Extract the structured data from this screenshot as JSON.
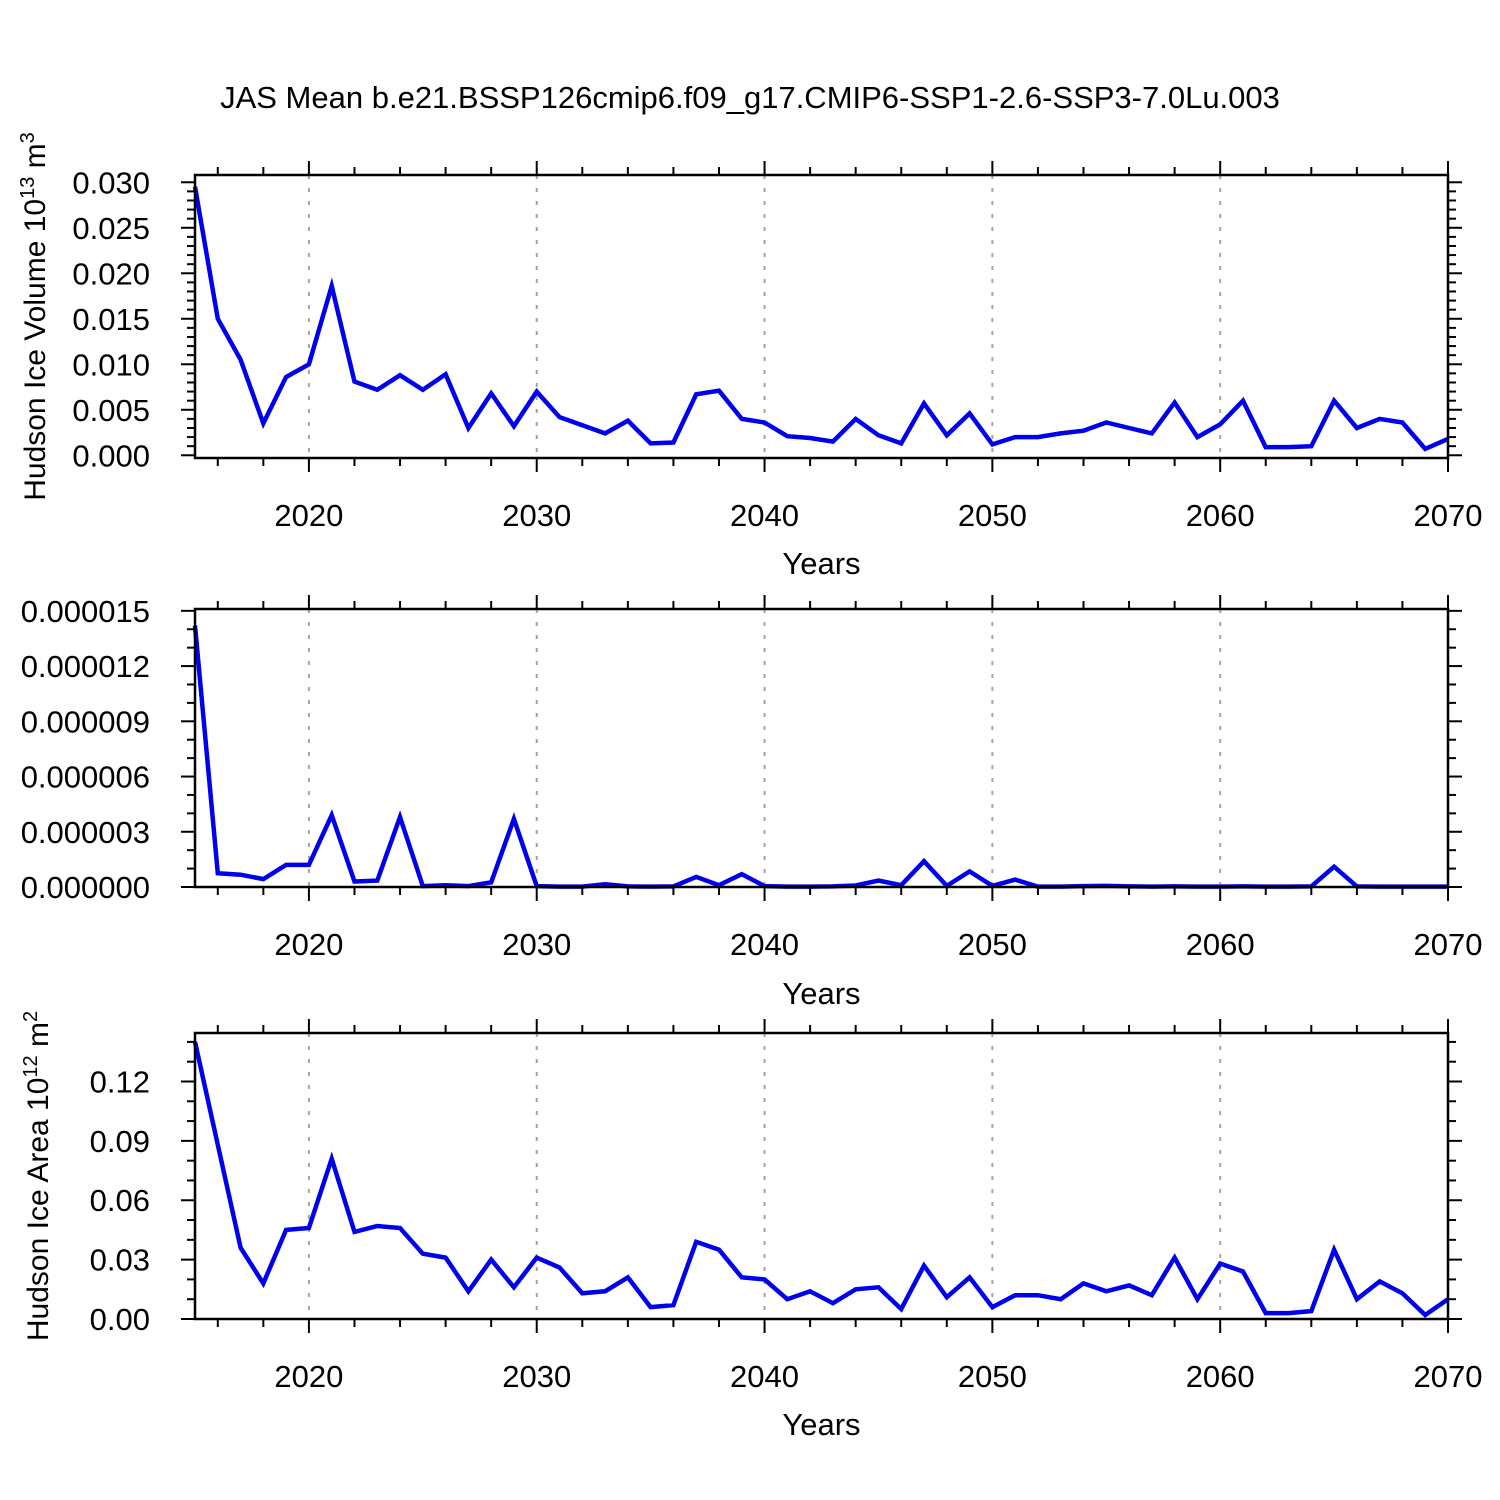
{
  "title": "JAS Mean b.e21.BSSP126cmip6.f09_g17.CMIP6-SSP1-2.6-SSP3-7.0Lu.003",
  "colors": {
    "line": "#0000EE",
    "frame": "#000000",
    "grid": "#A3A3A3",
    "text": "#000000",
    "background": "#FFFFFF"
  },
  "chart_data": [
    {
      "type": "line",
      "panel": "top",
      "xlabel": "Years",
      "ylabel": "Hudson Ice Volume 10^13^ m^3^",
      "xlim": [
        2015,
        2070
      ],
      "ylim": [
        -0.0003,
        0.0308
      ],
      "grid": "vertical-dashed",
      "legend_position": "none",
      "xticks_major": [
        2020,
        2030,
        2040,
        2050,
        2060,
        2070
      ],
      "xtick_labels": [
        "2020",
        "2030",
        "2040",
        "2050",
        "2060",
        "2070"
      ],
      "xticks_minor_step": 2,
      "yticks_major": [
        0.0,
        0.005,
        0.01,
        0.015,
        0.02,
        0.025,
        0.03
      ],
      "ytick_labels": [
        "0.000",
        "0.005",
        "0.010",
        "0.015",
        "0.020",
        "0.025",
        "0.030"
      ],
      "yticks_minor_step": 0.001,
      "gridlines_x": [
        2020,
        2030,
        2040,
        2050,
        2060
      ],
      "x": [
        2015,
        2016,
        2017,
        2018,
        2019,
        2020,
        2021,
        2022,
        2023,
        2024,
        2025,
        2026,
        2027,
        2028,
        2029,
        2030,
        2031,
        2032,
        2033,
        2034,
        2035,
        2036,
        2037,
        2038,
        2039,
        2040,
        2041,
        2042,
        2043,
        2044,
        2045,
        2046,
        2047,
        2048,
        2049,
        2050,
        2051,
        2052,
        2053,
        2054,
        2055,
        2056,
        2057,
        2058,
        2059,
        2060,
        2061,
        2062,
        2063,
        2064,
        2065,
        2066,
        2067,
        2068,
        2069,
        2070
      ],
      "values": [
        0.0295,
        0.015,
        0.0105,
        0.0035,
        0.0086,
        0.01,
        0.0186,
        0.0081,
        0.0072,
        0.0088,
        0.0072,
        0.0089,
        0.003,
        0.0068,
        0.0032,
        0.007,
        0.0042,
        0.0033,
        0.0024,
        0.0038,
        0.0013,
        0.0014,
        0.0067,
        0.0071,
        0.004,
        0.0036,
        0.0021,
        0.0019,
        0.0015,
        0.004,
        0.0022,
        0.0013,
        0.0057,
        0.0022,
        0.0046,
        0.0012,
        0.002,
        0.002,
        0.0024,
        0.0027,
        0.0036,
        0.003,
        0.0024,
        0.0058,
        0.002,
        0.0034,
        0.006,
        0.0009,
        0.0009,
        0.001,
        0.006,
        0.003,
        0.004,
        0.0036,
        0.0007,
        0.0018
      ]
    },
    {
      "type": "line",
      "panel": "middle",
      "xlabel": "Years",
      "ylabel": "",
      "xlim": [
        2015,
        2070
      ],
      "ylim": [
        0,
        1.51e-05
      ],
      "grid": "vertical-dashed",
      "legend_position": "none",
      "xticks_major": [
        2020,
        2030,
        2040,
        2050,
        2060,
        2070
      ],
      "xtick_labels": [
        "2020",
        "2030",
        "2040",
        "2050",
        "2060",
        "2070"
      ],
      "xticks_minor_step": 2,
      "yticks_major": [
        0.0,
        3e-06,
        6e-06,
        9e-06,
        1.2e-05,
        1.5e-05
      ],
      "ytick_labels": [
        "0.000000",
        "0.000003",
        "0.000006",
        "0.000009",
        "0.000012",
        "0.000015"
      ],
      "yticks_minor_step": 1e-06,
      "gridlines_x": [
        2020,
        2030,
        2040,
        2050,
        2060
      ],
      "x": [
        2015,
        2016,
        2017,
        2018,
        2019,
        2020,
        2021,
        2022,
        2023,
        2024,
        2025,
        2026,
        2027,
        2028,
        2029,
        2030,
        2031,
        2032,
        2033,
        2034,
        2035,
        2036,
        2037,
        2038,
        2039,
        2040,
        2041,
        2042,
        2043,
        2044,
        2045,
        2046,
        2047,
        2048,
        2049,
        2050,
        2051,
        2052,
        2053,
        2054,
        2055,
        2056,
        2057,
        2058,
        2059,
        2060,
        2061,
        2062,
        2063,
        2064,
        2065,
        2066,
        2067,
        2068,
        2069,
        2070
      ],
      "values": [
        1.42e-05,
        7.5e-07,
        6.7e-07,
        4.3e-07,
        1.2e-06,
        1.2e-06,
        3.9e-06,
        3e-07,
        3.5e-07,
        3.8e-06,
        5e-08,
        1e-07,
        5e-08,
        2.5e-07,
        3.7e-06,
        5e-08,
        2e-08,
        2e-08,
        1.5e-07,
        3e-08,
        2e-08,
        3e-08,
        5.5e-07,
        1e-07,
        7e-07,
        5e-08,
        2e-08,
        2e-08,
        3e-08,
        8e-08,
        3.5e-07,
        1e-07,
        1.4e-06,
        6e-08,
        8.5e-07,
        6e-08,
        4e-07,
        2e-08,
        2e-08,
        5e-08,
        6e-08,
        3e-08,
        2e-08,
        3e-08,
        2e-08,
        2e-08,
        3e-08,
        2e-08,
        2e-08,
        3e-08,
        1.1e-06,
        3e-08,
        2e-08,
        2e-08,
        2e-08,
        2e-08
      ]
    },
    {
      "type": "line",
      "panel": "bottom",
      "xlabel": "Years",
      "ylabel": "Hudson Ice Area 10^12^ m^2^",
      "xlim": [
        2015,
        2070
      ],
      "ylim": [
        0,
        0.1445
      ],
      "grid": "vertical-dashed",
      "legend_position": "none",
      "xticks_major": [
        2020,
        2030,
        2040,
        2050,
        2060,
        2070
      ],
      "xtick_labels": [
        "2020",
        "2030",
        "2040",
        "2050",
        "2060",
        "2070"
      ],
      "xticks_minor_step": 2,
      "yticks_major": [
        0.0,
        0.03,
        0.06,
        0.09,
        0.12
      ],
      "ytick_labels": [
        "0.00",
        "0.03",
        "0.06",
        "0.09",
        "0.12"
      ],
      "yticks_minor_step": 0.01,
      "gridlines_x": [
        2020,
        2030,
        2040,
        2050,
        2060
      ],
      "x": [
        2015,
        2016,
        2017,
        2018,
        2019,
        2020,
        2021,
        2022,
        2023,
        2024,
        2025,
        2026,
        2027,
        2028,
        2029,
        2030,
        2031,
        2032,
        2033,
        2034,
        2035,
        2036,
        2037,
        2038,
        2039,
        2040,
        2041,
        2042,
        2043,
        2044,
        2045,
        2046,
        2047,
        2048,
        2049,
        2050,
        2051,
        2052,
        2053,
        2054,
        2055,
        2056,
        2057,
        2058,
        2059,
        2060,
        2061,
        2062,
        2063,
        2064,
        2065,
        2066,
        2067,
        2068,
        2069,
        2070
      ],
      "values": [
        0.14,
        0.088,
        0.036,
        0.018,
        0.045,
        0.046,
        0.081,
        0.044,
        0.047,
        0.046,
        0.033,
        0.031,
        0.014,
        0.03,
        0.016,
        0.031,
        0.026,
        0.013,
        0.014,
        0.021,
        0.006,
        0.007,
        0.039,
        0.035,
        0.021,
        0.02,
        0.01,
        0.014,
        0.008,
        0.015,
        0.016,
        0.005,
        0.027,
        0.011,
        0.021,
        0.006,
        0.012,
        0.012,
        0.01,
        0.018,
        0.014,
        0.017,
        0.012,
        0.031,
        0.01,
        0.028,
        0.024,
        0.003,
        0.003,
        0.004,
        0.035,
        0.01,
        0.019,
        0.013,
        0.002,
        0.01
      ]
    }
  ]
}
